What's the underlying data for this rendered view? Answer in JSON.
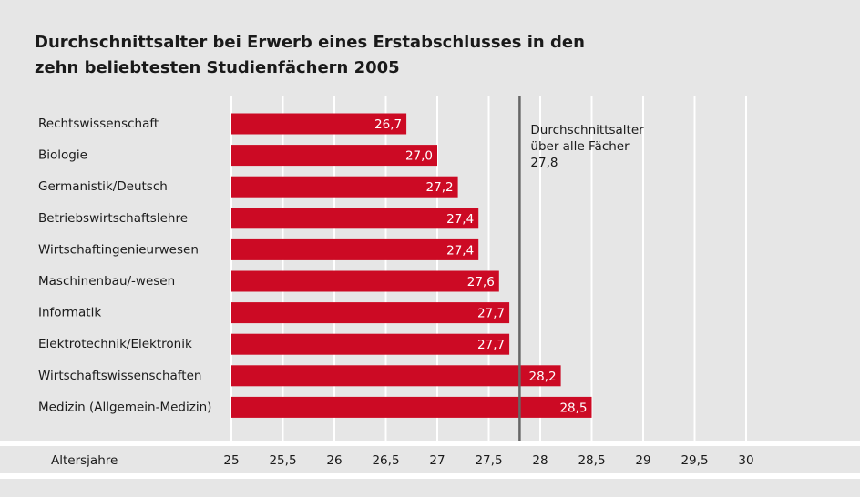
{
  "chart_data": {
    "type": "hbar",
    "title": [
      "Durchschnittsalter bei Erwerb eines Erstabschlusses in den",
      "zehn beliebtesten Studienfächern 2005"
    ],
    "categories": [
      "Rechtswissenschaft",
      "Biologie",
      "Germanistik/Deutsch",
      "Betriebswirtschaftslehre",
      "Wirtschaftingenieurwesen",
      "Maschinenbau/-wesen",
      "Informatik",
      "Elektrotechnik/Elektronik",
      "Wirtschaftswissenschaften",
      "Medizin (Allgemein-Medizin)"
    ],
    "values": [
      26.7,
      27.0,
      27.2,
      27.4,
      27.4,
      27.6,
      27.7,
      27.7,
      28.2,
      28.5
    ],
    "value_labels": [
      "26,7",
      "27,0",
      "27,2",
      "27,4",
      "27,4",
      "27,6",
      "27,7",
      "27,7",
      "28,2",
      "28,5"
    ],
    "color": "#cc0a24",
    "xlabel": "Altersjahre",
    "xlim": [
      25,
      30
    ],
    "xticks": [
      25,
      {
        "value": 25.5,
        "label": "25,5"
      },
      26,
      {
        "value": 26.5,
        "label": "26,5"
      },
      27,
      {
        "value": 27.5,
        "label": "27,5"
      },
      28,
      {
        "value": 28.5,
        "label": "28,5"
      },
      29,
      {
        "value": 29.5,
        "label": "29,5"
      },
      30
    ],
    "grid": true,
    "reference": {
      "value": 27.8,
      "label": "27,8",
      "text": [
        "Durchschnittsalter",
        "über alle Fächer"
      ]
    }
  }
}
